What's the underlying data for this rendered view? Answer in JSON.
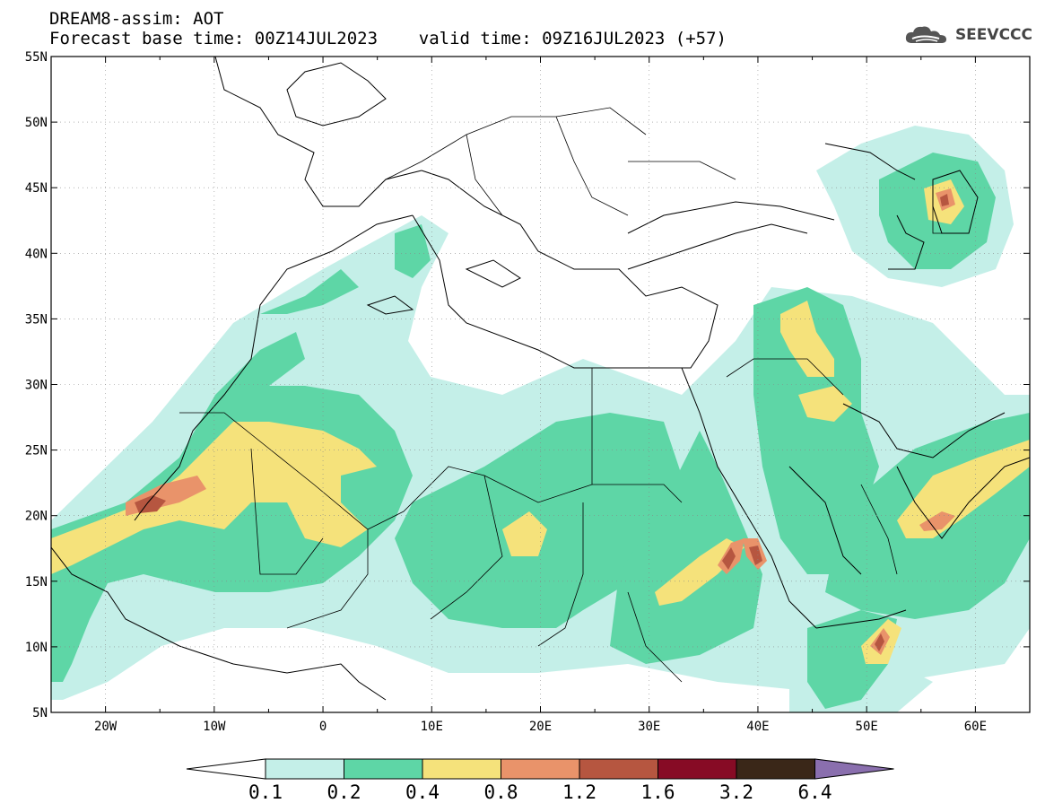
{
  "header": {
    "title_line1": "DREAM8-assim: AOT",
    "title_line2": "Forecast base time: 00Z14JUL2023    valid time: 09Z16JUL2023 (+57)",
    "logo_text": "SEEVCCC",
    "logo_icon": "cloud-icon"
  },
  "map": {
    "lon_range": [
      -25,
      65
    ],
    "lat_range": [
      5,
      55
    ],
    "lat_ticks": [
      "55N",
      "50N",
      "45N",
      "40N",
      "35N",
      "30N",
      "25N",
      "20N",
      "15N",
      "10N",
      "5N"
    ],
    "lon_ticks": [
      "20W",
      "10W",
      "0",
      "10E",
      "20E",
      "30E",
      "40E",
      "50E",
      "60E"
    ]
  },
  "colorbar": {
    "labels": [
      "0.1",
      "0.2",
      "0.4",
      "0.8",
      "1.2",
      "1.6",
      "3.2",
      "6.4"
    ],
    "colors": {
      "under": "#ffffff",
      "bins": [
        "#c4efe8",
        "#5ed6a6",
        "#f5e27b",
        "#e9936a",
        "#b65640",
        "#870b25",
        "#3a2718"
      ],
      "over": "#8a6fae"
    }
  }
}
